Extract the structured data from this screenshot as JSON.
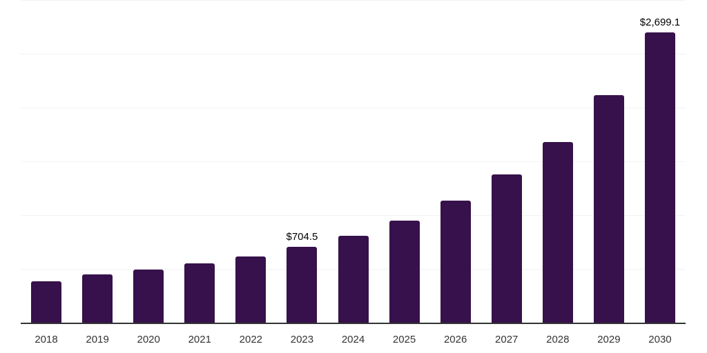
{
  "chart_data": {
    "type": "bar",
    "categories": [
      "2018",
      "2019",
      "2020",
      "2021",
      "2022",
      "2023",
      "2024",
      "2025",
      "2026",
      "2027",
      "2028",
      "2029",
      "2030"
    ],
    "values": [
      385,
      449,
      494,
      551,
      615,
      704.5,
      808,
      949,
      1135,
      1378,
      1679,
      2115,
      2699.1
    ],
    "data_labels": {
      "2023": "$704.5",
      "2030": "$2,699.1"
    },
    "title": "",
    "xlabel": "",
    "ylabel": "",
    "ylim": [
      0,
      3000
    ],
    "gridline_interval": 500,
    "grid": true,
    "legend": "none",
    "y_axis_ticks_visible": false,
    "colors": {
      "bar": "#36114B",
      "axis_line": "#333333",
      "gridline": "#f2f2f3",
      "data_label_text": "#000000",
      "tick_label_text": "#333333",
      "background": "#ffffff"
    }
  }
}
